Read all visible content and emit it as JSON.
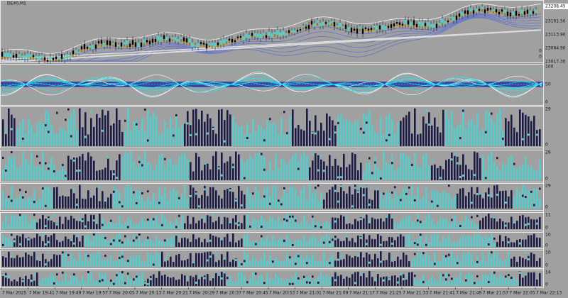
{
  "window": {
    "title": "DE40,M1"
  },
  "price_axis": {
    "current": "23208.45",
    "labels": [
      "23161.50",
      "23113.90",
      "23064.90",
      "23017.30"
    ],
    "extra": [
      "0",
      "0"
    ]
  },
  "panes": [
    {
      "labels": [
        "100",
        "50",
        "0"
      ]
    },
    {
      "labels": [
        "29",
        "0"
      ]
    },
    {
      "labels": [
        "29",
        "0"
      ]
    },
    {
      "labels": [
        "29",
        "0"
      ]
    },
    {
      "labels": [
        "11",
        "0"
      ]
    },
    {
      "labels": [
        "10",
        "0"
      ]
    },
    {
      "labels": [
        "10",
        "0"
      ]
    },
    {
      "labels": [
        "14",
        "0"
      ]
    }
  ],
  "time_axis": {
    "labels": [
      "7 Mar 2025",
      "7 Mar 19:41",
      "7 Mar 19:49",
      "7 Mar 19:57",
      "7 Mar 20:05",
      "7 Mar 20:13",
      "7 Mar 20:21",
      "7 Mar 20:29",
      "7 Mar 20:37",
      "7 Mar 20:45",
      "7 Mar 20:53",
      "7 Mar 21:01",
      "7 Mar 21:09",
      "7 Mar 21:17",
      "7 Mar 21:25",
      "7 Mar 21:33",
      "7 Mar 21:41",
      "7 Mar 21:49",
      "7 Mar 21:57",
      "7 Mar 22:05",
      "7 Mar 22:13"
    ]
  }
}
